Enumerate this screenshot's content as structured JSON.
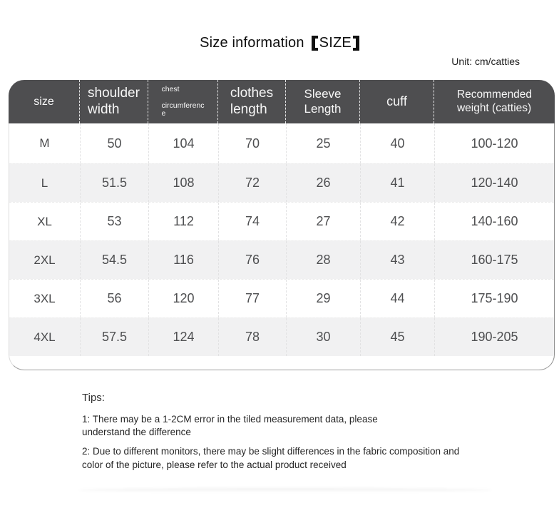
{
  "header": {
    "title_full": "Size information 【SIZE】",
    "title_main": "Size information",
    "title_tag": "SIZE",
    "unit_note": "Unit: cm/catties"
  },
  "size_table": {
    "columns": [
      {
        "id": "size",
        "label": "size"
      },
      {
        "id": "shoulder-width",
        "label": "shoulder\nwidth"
      },
      {
        "id": "chest-circumference",
        "label": "chest\n\ncircumferenc\ne"
      },
      {
        "id": "clothes-length",
        "label": "clothes\nlength"
      },
      {
        "id": "sleeve-length",
        "label": "Sleeve\nLength"
      },
      {
        "id": "cuff",
        "label": "cuff"
      },
      {
        "id": "recommended-weight",
        "label": "Recommended\nweight (catties)"
      }
    ],
    "rows": [
      [
        "M",
        "50",
        "104",
        "70",
        "25",
        "40",
        "100-120"
      ],
      [
        "L",
        "51.5",
        "108",
        "72",
        "26",
        "41",
        "120-140"
      ],
      [
        "XL",
        "53",
        "112",
        "74",
        "27",
        "42",
        "140-160"
      ],
      [
        "2XL",
        "54.5",
        "116",
        "76",
        "28",
        "43",
        "160-175"
      ],
      [
        "3XL",
        "56",
        "120",
        "77",
        "29",
        "44",
        "175-190"
      ],
      [
        "4XL",
        "57.5",
        "124",
        "78",
        "30",
        "45",
        "190-205"
      ]
    ]
  },
  "tips": {
    "heading": "Tips:",
    "items": [
      "1: There may be a 1-2CM error in the tiled measurement data, please\nunderstand the difference",
      "2: Due to different monitors, there may be slight differences in the fabric composition and\ncolor of the picture, please refer to the actual product received"
    ]
  },
  "colors": {
    "header_bg": "#4e4e50",
    "header_text": "#f7f7f7",
    "row_alt_bg": "#f1f1f2",
    "body_text": "#4e4f51"
  }
}
